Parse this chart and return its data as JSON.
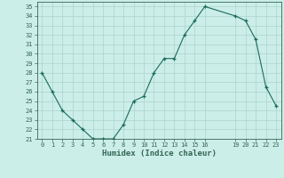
{
  "x": [
    0,
    1,
    2,
    3,
    4,
    5,
    6,
    7,
    8,
    9,
    10,
    11,
    12,
    13,
    14,
    15,
    16,
    19,
    20,
    21,
    22,
    23
  ],
  "y": [
    28,
    26,
    24,
    23,
    22,
    21,
    21,
    21,
    22.5,
    25,
    25.5,
    28,
    29.5,
    29.5,
    32,
    33.5,
    35,
    34,
    33.5,
    31.5,
    26.5,
    24.5
  ],
  "xlim": [
    -0.5,
    23.5
  ],
  "ylim": [
    21,
    35.5
  ],
  "xtick_positions": [
    0,
    1,
    2,
    3,
    4,
    5,
    6,
    7,
    8,
    9,
    10,
    11,
    12,
    13,
    14,
    15,
    16,
    19,
    20,
    21,
    22,
    23
  ],
  "xtick_labels": [
    "0",
    "1",
    "2",
    "3",
    "4",
    "5",
    "6",
    "7",
    "8",
    "9",
    "10",
    "11",
    "12",
    "13",
    "14",
    "15",
    "16",
    "19",
    "20",
    "21",
    "22",
    "23"
  ],
  "yticks": [
    21,
    22,
    23,
    24,
    25,
    26,
    27,
    28,
    29,
    30,
    31,
    32,
    33,
    34,
    35
  ],
  "xlabel": "Humidex (Indice chaleur)",
  "line_color": "#1a6b5a",
  "marker": "+",
  "bg_color": "#cceee8",
  "grid_color": "#aad4cc",
  "axes_color": "#336655"
}
